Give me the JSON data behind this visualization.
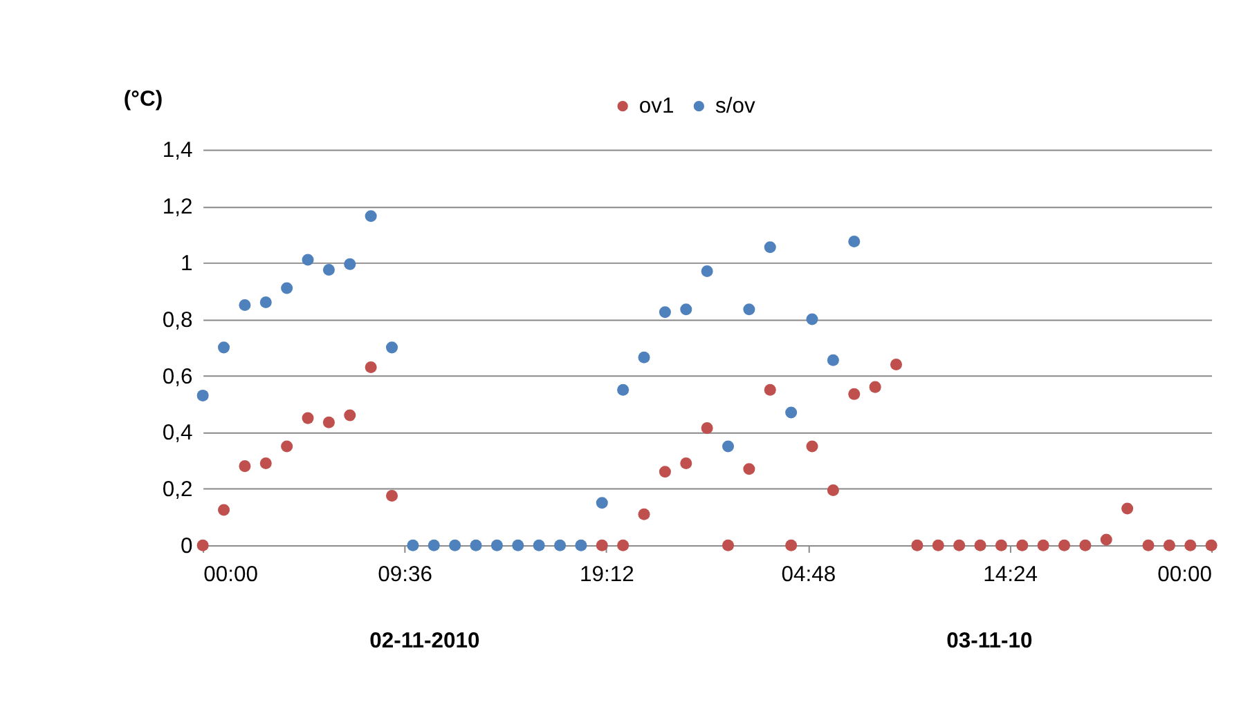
{
  "chart_data": {
    "type": "scatter",
    "ylabel": "(°C)",
    "legend": "top",
    "grid": "y",
    "marker": "circle",
    "x": [
      "2010-11-02T00:00",
      "2010-11-02T01:00",
      "2010-11-02T02:00",
      "2010-11-02T03:00",
      "2010-11-02T04:00",
      "2010-11-02T05:00",
      "2010-11-02T06:00",
      "2010-11-02T07:00",
      "2010-11-02T08:00",
      "2010-11-02T09:00",
      "2010-11-02T10:00",
      "2010-11-02T11:00",
      "2010-11-02T12:00",
      "2010-11-02T13:00",
      "2010-11-02T14:00",
      "2010-11-02T15:00",
      "2010-11-02T16:00",
      "2010-11-02T17:00",
      "2010-11-02T18:00",
      "2010-11-02T19:00",
      "2010-11-02T20:00",
      "2010-11-02T21:00",
      "2010-11-02T22:00",
      "2010-11-02T23:00",
      "2010-11-03T00:00",
      "2010-11-03T01:00",
      "2010-11-03T02:00",
      "2010-11-03T03:00",
      "2010-11-03T04:00",
      "2010-11-03T05:00",
      "2010-11-03T06:00",
      "2010-11-03T07:00",
      "2010-11-03T08:00",
      "2010-11-03T09:00",
      "2010-11-03T10:00",
      "2010-11-03T11:00",
      "2010-11-03T12:00",
      "2010-11-03T13:00",
      "2010-11-03T14:00",
      "2010-11-03T15:00",
      "2010-11-03T16:00",
      "2010-11-03T17:00",
      "2010-11-03T18:00",
      "2010-11-03T19:00",
      "2010-11-03T20:00",
      "2010-11-03T21:00",
      "2010-11-03T22:00",
      "2010-11-03T23:00",
      "2010-11-04T00:00"
    ],
    "xlim": [
      "2010-11-02T00:00",
      "2010-11-04T00:00"
    ],
    "xticks": [
      {
        "value": "2010-11-02T00:00",
        "label": "00:00"
      },
      {
        "value": "2010-11-02T09:36",
        "label": "09:36"
      },
      {
        "value": "2010-11-02T19:12",
        "label": "19:12"
      },
      {
        "value": "2010-11-03T04:48",
        "label": "04:48"
      },
      {
        "value": "2010-11-03T14:24",
        "label": "14:24"
      },
      {
        "value": "2010-11-04T00:00",
        "label": "00:00"
      }
    ],
    "ylim": [
      0,
      1.4
    ],
    "yticks": [
      0,
      {
        "value": 0.2,
        "label": "0,2"
      },
      {
        "value": 0.4,
        "label": "0,4"
      },
      {
        "value": 0.6,
        "label": "0,6"
      },
      {
        "value": 0.8,
        "label": "0,8"
      },
      1,
      {
        "value": 1.2,
        "label": "1,2"
      },
      {
        "value": 1.4,
        "label": "1,4"
      }
    ],
    "series": [
      {
        "name": "ov1",
        "color": "#c0504d",
        "values": [
          0,
          0.125,
          0.28,
          0.29,
          0.35,
          0.45,
          0.435,
          0.46,
          0.63,
          0.175,
          null,
          null,
          null,
          null,
          null,
          null,
          null,
          null,
          null,
          0,
          0,
          0.11,
          0.26,
          0.29,
          0.415,
          0,
          0.27,
          0.55,
          0,
          0.35,
          0.195,
          0.535,
          0.56,
          0.64,
          0,
          0,
          0,
          0,
          0,
          0,
          0,
          0,
          0,
          0.02,
          0.13,
          0,
          0,
          0,
          0
        ]
      },
      {
        "name": "s/ov",
        "color": "#4f81bd",
        "values": [
          0.53,
          0.7,
          0.85,
          0.86,
          0.91,
          1.01,
          0.975,
          0.995,
          1.165,
          0.7,
          0,
          0,
          0,
          0,
          0,
          0,
          0,
          0,
          0,
          0.15,
          0.55,
          0.665,
          0.825,
          0.835,
          0.97,
          0.35,
          0.835,
          1.055,
          0.47,
          0.8,
          0.655,
          1.075,
          null,
          null,
          null,
          null,
          null,
          null,
          null,
          null,
          null,
          null,
          null,
          null,
          null,
          null,
          null,
          null,
          null
        ]
      }
    ],
    "annotations": [
      "02-11-2010",
      "03-11-10"
    ]
  }
}
